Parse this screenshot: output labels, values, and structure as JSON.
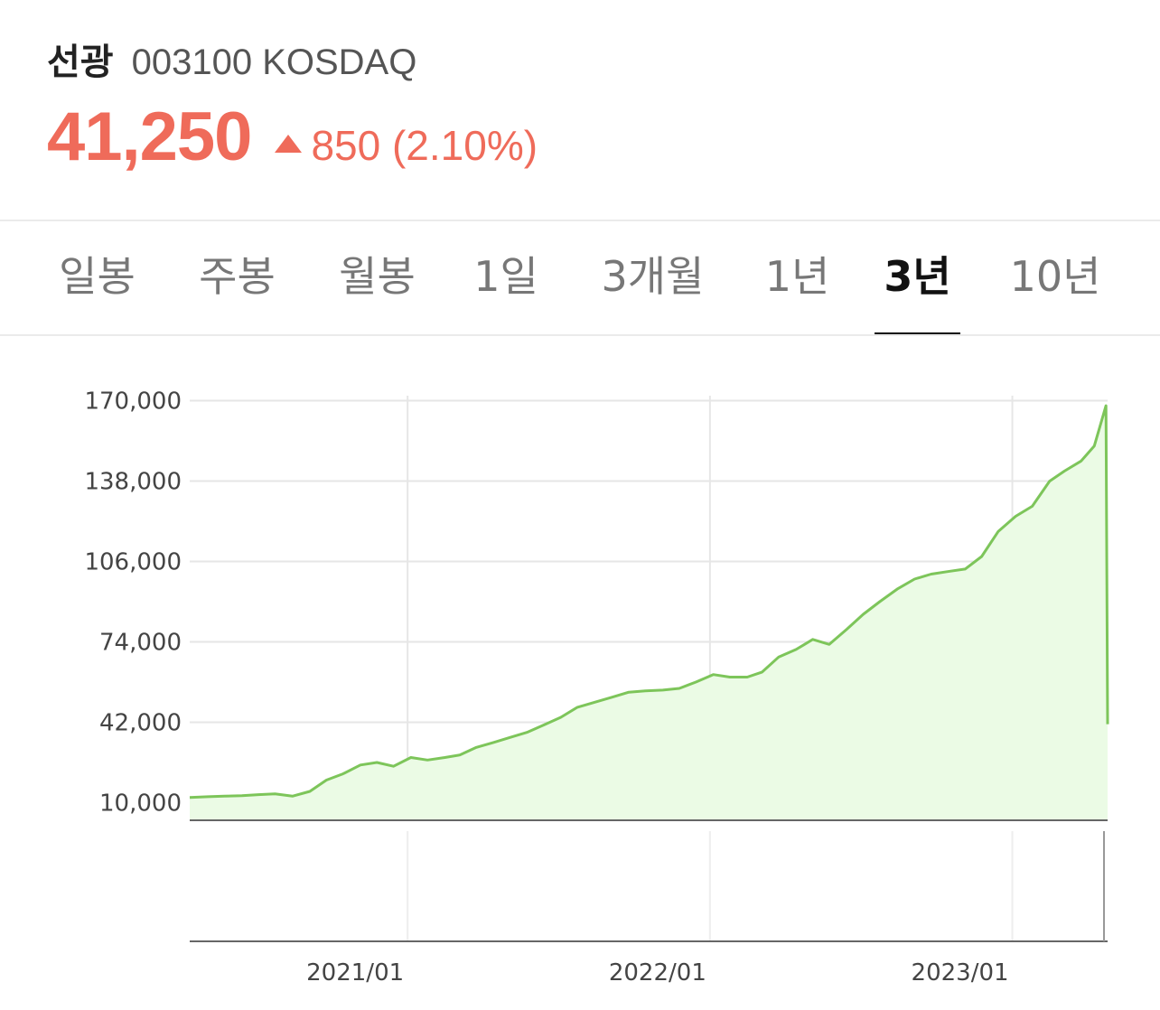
{
  "stock": {
    "name": "선광",
    "code_market": "003100 KOSDAQ",
    "price": "41,250",
    "change": "850 (2.10%)",
    "change_direction": "up",
    "accent_color": "#ef6b5a"
  },
  "tabs": [
    {
      "label": "일봉",
      "active": false
    },
    {
      "label": "주봉",
      "active": false
    },
    {
      "label": "월봉",
      "active": false
    },
    {
      "label": "1일",
      "active": false
    },
    {
      "label": "3개월",
      "active": false
    },
    {
      "label": "1년",
      "active": false
    },
    {
      "label": "3년",
      "active": true
    },
    {
      "label": "10년",
      "active": false
    }
  ],
  "chart_data": {
    "type": "area",
    "line_color": "#7dc55a",
    "fill_color": "#ebfbe5",
    "grid": true,
    "x_tick_labels": [
      "2021/01",
      "2022/01",
      "2023/01"
    ],
    "y_ticks": [
      10000,
      42000,
      74000,
      106000,
      138000,
      170000
    ],
    "y_tick_labels": [
      "10,000",
      "42,000",
      "74,000",
      "106,000",
      "138,000",
      "170,000"
    ],
    "ylim": [
      3000,
      172000
    ],
    "xlim": [
      "2020-04-13",
      "2023-04-26"
    ],
    "x": [
      "2020-04-13",
      "2020-05-05",
      "2020-05-25",
      "2020-06-15",
      "2020-07-05",
      "2020-07-25",
      "2020-08-15",
      "2020-09-05",
      "2020-09-25",
      "2020-10-15",
      "2020-11-05",
      "2020-11-25",
      "2020-12-15",
      "2021-01-05",
      "2021-01-25",
      "2021-02-15",
      "2021-03-05",
      "2021-03-25",
      "2021-04-15",
      "2021-05-05",
      "2021-05-25",
      "2021-06-15",
      "2021-07-05",
      "2021-07-25",
      "2021-08-15",
      "2021-09-05",
      "2021-09-25",
      "2021-10-15",
      "2021-11-05",
      "2021-11-25",
      "2021-12-15",
      "2022-01-05",
      "2022-01-25",
      "2022-02-15",
      "2022-03-05",
      "2022-03-25",
      "2022-04-15",
      "2022-05-05",
      "2022-05-25",
      "2022-06-15",
      "2022-07-05",
      "2022-07-25",
      "2022-08-15",
      "2022-09-05",
      "2022-09-25",
      "2022-10-15",
      "2022-11-05",
      "2022-11-25",
      "2022-12-15",
      "2023-01-05",
      "2023-01-25",
      "2023-02-15",
      "2023-03-05",
      "2023-03-25",
      "2023-04-10",
      "2023-04-24",
      "2023-04-26"
    ],
    "series": [
      {
        "values": [
          12100,
          12400,
          12600,
          12800,
          13200,
          13500,
          12600,
          14500,
          19000,
          21500,
          25000,
          26000,
          24500,
          28000,
          27000,
          28000,
          29000,
          32000,
          34000,
          36000,
          38000,
          41000,
          44000,
          48000,
          50000,
          52000,
          54000,
          54500,
          54800,
          55500,
          58000,
          61000,
          60000,
          60000,
          62000,
          68000,
          71000,
          75000,
          73000,
          79000,
          85000,
          90000,
          95000,
          99000,
          101000,
          102000,
          103000,
          108000,
          118000,
          124000,
          128000,
          138000,
          142000,
          146000,
          152000,
          168000,
          41250
        ]
      }
    ]
  }
}
